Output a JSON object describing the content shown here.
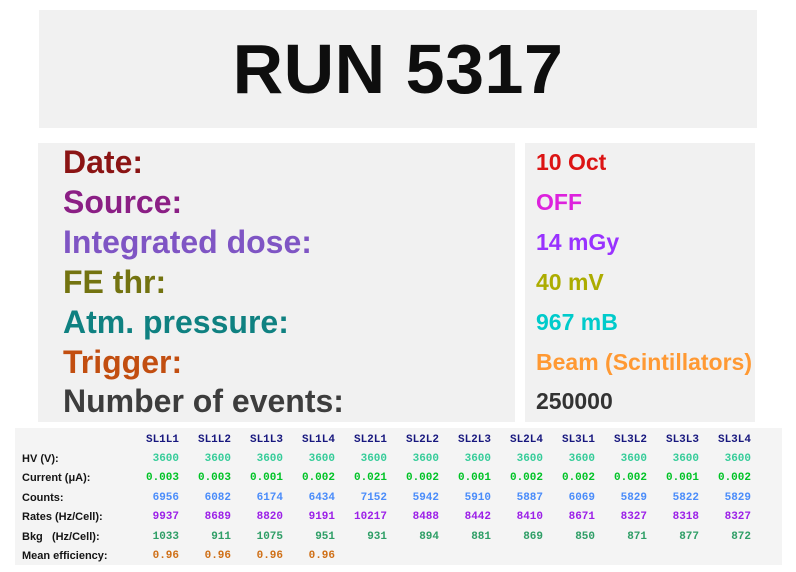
{
  "banner": {
    "title": "RUN 5317"
  },
  "info": {
    "rows": [
      {
        "key": "date",
        "label": "Date:",
        "value": "10 Oct",
        "label_color": "#8b1414",
        "value_color": "#dc1414"
      },
      {
        "key": "source",
        "label": "Source:",
        "value": "OFF",
        "label_color": "#8b1f85",
        "value_color": "#dd22dd"
      },
      {
        "key": "integrated-dose",
        "label": "Integrated dose:",
        "value": "14 mGy",
        "label_color": "#7f55c4",
        "value_color": "#9932ff"
      },
      {
        "key": "fe-thr",
        "label": "FE thr:",
        "value": "40 mV",
        "label_color": "#737310",
        "value_color": "#acac00"
      },
      {
        "key": "atm-pressure",
        "label": "Atm. pressure:",
        "value": "967 mB",
        "label_color": "#0f8181",
        "value_color": "#00cbcb"
      },
      {
        "key": "trigger",
        "label": "Trigger:",
        "value": "Beam (Scintillators)",
        "label_color": "#c24e10",
        "value_color": "#ff9933"
      },
      {
        "key": "number-of-events",
        "label": "Number of events:",
        "value": "250000",
        "label_color": "#3d3d3d",
        "value_color": "#333333"
      }
    ]
  },
  "chart_data": {
    "type": "table",
    "title": "RUN 5317 chamber summary",
    "columns": [
      "SL1L1",
      "SL1L2",
      "SL1L3",
      "SL1L4",
      "SL2L1",
      "SL2L2",
      "SL2L3",
      "SL2L4",
      "SL3L1",
      "SL3L2",
      "SL3L3",
      "SL3L4"
    ],
    "rows": [
      {
        "key": "hv",
        "label": "HV (V):",
        "color": "#35cc99",
        "values": [
          "3600",
          "3600",
          "3600",
          "3600",
          "3600",
          "3600",
          "3600",
          "3600",
          "3600",
          "3600",
          "3600",
          "3600"
        ]
      },
      {
        "key": "current",
        "label": "Current (μA):",
        "color": "#00c326",
        "values": [
          "0.003",
          "0.003",
          "0.001",
          "0.002",
          "0.021",
          "0.002",
          "0.001",
          "0.002",
          "0.002",
          "0.002",
          "0.001",
          "0.002"
        ]
      },
      {
        "key": "counts",
        "label": "Counts:",
        "color": "#4a8cfa",
        "values": [
          "6956",
          "6082",
          "6174",
          "6434",
          "7152",
          "5942",
          "5910",
          "5887",
          "6069",
          "5829",
          "5822",
          "5829"
        ]
      },
      {
        "key": "rates",
        "label": "Rates (Hz/Cell):",
        "color": "#9c20e8",
        "values": [
          "9937",
          "8689",
          "8820",
          "9191",
          "10217",
          "8488",
          "8442",
          "8410",
          "8671",
          "8327",
          "8318",
          "8327"
        ]
      },
      {
        "key": "bkg",
        "label": "Bkg   (Hz/Cell):",
        "color": "#2e9e66",
        "values": [
          "1033",
          "911",
          "1075",
          "951",
          "931",
          "894",
          "881",
          "869",
          "850",
          "871",
          "877",
          "872"
        ]
      },
      {
        "key": "mean-efficiency",
        "label": "Mean efficiency:",
        "color": "#cf6f16",
        "values": [
          "0.96",
          "0.96",
          "0.96",
          "0.96",
          "",
          "",
          "",
          "",
          "",
          "",
          "",
          ""
        ]
      }
    ],
    "header_color": "#17177e"
  },
  "colors": {
    "page_bg": "#ffffff",
    "panel_bg": "#f1f1f1",
    "table_bg": "#f4f4f4",
    "title_color": "#0e0e0e",
    "row_label_color": "#141414"
  }
}
